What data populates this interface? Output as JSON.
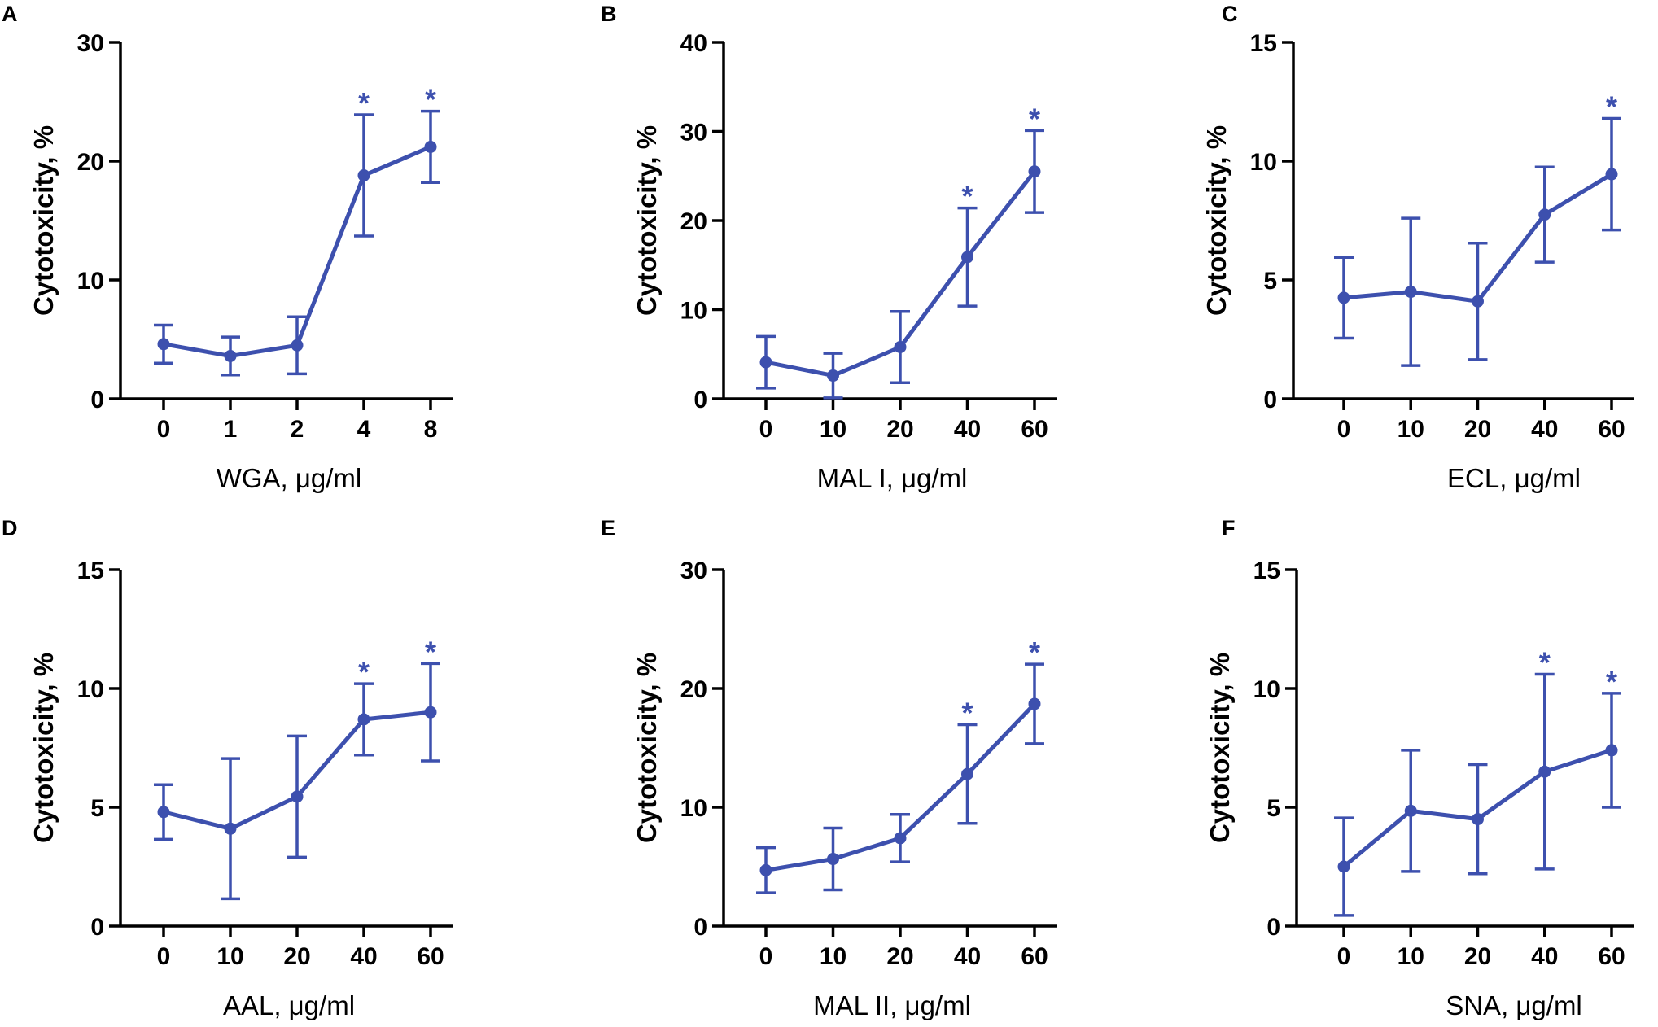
{
  "colors": {
    "series": "#3d50ae",
    "axis": "#000000",
    "background": "#ffffff"
  },
  "chart_data": [
    {
      "panel": "A",
      "type": "line",
      "xlabel": "WGA, μg/ml",
      "ylabel": "Cytotoxicity, %",
      "categories": [
        "0",
        "1",
        "2",
        "4",
        "8"
      ],
      "values": [
        4.6,
        3.6,
        4.5,
        18.8,
        21.2
      ],
      "errors": [
        1.6,
        1.6,
        2.4,
        5.1,
        3.0
      ],
      "significant": [
        false,
        false,
        false,
        true,
        true
      ],
      "significance_marker": "*",
      "ylim": [
        0,
        30
      ],
      "yticks": [
        "0",
        "10",
        "20",
        "30"
      ]
    },
    {
      "panel": "B",
      "type": "line",
      "xlabel": "MAL I, μg/ml",
      "ylabel": "Cytotoxicity, %",
      "categories": [
        "0",
        "10",
        "20",
        "40",
        "60"
      ],
      "values": [
        4.1,
        2.6,
        5.8,
        15.9,
        25.5
      ],
      "errors": [
        2.9,
        2.5,
        4.0,
        5.5,
        4.6
      ],
      "significant": [
        false,
        false,
        false,
        true,
        true
      ],
      "significance_marker": "*",
      "ylim": [
        0,
        40
      ],
      "yticks": [
        "0",
        "10",
        "20",
        "30",
        "40"
      ]
    },
    {
      "panel": "C",
      "type": "line",
      "xlabel": "ECL, μg/ml",
      "ylabel": "Cytotoxicity, %",
      "categories": [
        "0",
        "10",
        "20",
        "40",
        "60"
      ],
      "values": [
        4.25,
        4.5,
        4.1,
        7.75,
        9.45
      ],
      "errors": [
        1.7,
        3.1,
        2.45,
        2.0,
        2.35
      ],
      "significant": [
        false,
        false,
        false,
        false,
        true
      ],
      "significance_marker": "*",
      "ylim": [
        0,
        15
      ],
      "yticks": [
        "0",
        "5",
        "10",
        "15"
      ]
    },
    {
      "panel": "D",
      "type": "line",
      "xlabel": "AAL, μg/ml",
      "ylabel": "Cytotoxicity, %",
      "categories": [
        "0",
        "10",
        "20",
        "40",
        "60"
      ],
      "values": [
        4.8,
        4.1,
        5.45,
        8.7,
        9.0
      ],
      "errors": [
        1.15,
        2.95,
        2.55,
        1.5,
        2.05
      ],
      "significant": [
        false,
        false,
        false,
        true,
        true
      ],
      "significance_marker": "*",
      "ylim": [
        0,
        15
      ],
      "yticks": [
        "0",
        "5",
        "10",
        "15"
      ]
    },
    {
      "panel": "E",
      "type": "line",
      "xlabel": "MAL II, μg/ml",
      "ylabel": "Cytotoxicity, %",
      "categories": [
        "0",
        "10",
        "20",
        "40",
        "60"
      ],
      "values": [
        4.7,
        5.65,
        7.4,
        12.8,
        18.7
      ],
      "errors": [
        1.9,
        2.6,
        2.0,
        4.15,
        3.35
      ],
      "significant": [
        false,
        false,
        false,
        true,
        true
      ],
      "significance_marker": "*",
      "ylim": [
        0,
        30
      ],
      "yticks": [
        "0",
        "10",
        "20",
        "30"
      ]
    },
    {
      "panel": "F",
      "type": "line",
      "xlabel": "SNA, μg/ml",
      "ylabel": "Cytotoxicity, %",
      "categories": [
        "0",
        "10",
        "20",
        "40",
        "60"
      ],
      "values": [
        2.5,
        4.85,
        4.5,
        6.5,
        7.4
      ],
      "errors": [
        2.05,
        2.55,
        2.3,
        4.1,
        2.4
      ],
      "significant": [
        false,
        false,
        false,
        true,
        true
      ],
      "significance_marker": "*",
      "ylim": [
        0,
        15
      ],
      "yticks": [
        "0",
        "5",
        "10",
        "15"
      ]
    }
  ]
}
